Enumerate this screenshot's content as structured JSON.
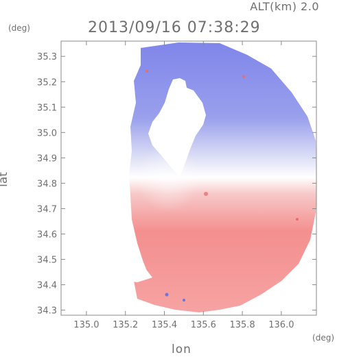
{
  "header": {
    "alt_label": "ALT(km) 2.0",
    "timestamp": "2013/09/16 07:38:29"
  },
  "axes": {
    "y_unit": "(deg)",
    "x_unit": "(deg)",
    "xlabel": "lon",
    "ylabel": "lat"
  },
  "chart_data": {
    "type": "heatmap",
    "title": "2013/09/16 07:38:29",
    "subtitle": "ALT(km) 2.0",
    "xlabel": "lon",
    "ylabel": "lat",
    "xunit": "(deg)",
    "yunit": "(deg)",
    "xlim": [
      134.87,
      136.18
    ],
    "ylim": [
      34.28,
      35.36
    ],
    "x_ticks": [
      135.0,
      135.2,
      135.4,
      135.6,
      135.8,
      136.0
    ],
    "x_tick_labels": [
      "135.0",
      "135.2",
      "135.4",
      "135.6",
      "135.8",
      "136.0"
    ],
    "y_ticks": [
      34.3,
      34.4,
      34.5,
      34.6,
      34.7,
      34.8,
      34.9,
      35.0,
      35.1,
      35.2,
      35.3
    ],
    "y_tick_labels": [
      "34.3",
      "34.4",
      "34.5",
      "34.6",
      "34.7",
      "34.8",
      "34.9",
      "35.0",
      "35.1",
      "35.2",
      "35.3"
    ],
    "radar_center": [
      135.52,
      34.82
    ],
    "colormap": {
      "approaching": "#7f86e8",
      "zero": "#ffffff",
      "receding": "#f48a8a"
    },
    "grid": false,
    "legend": "none"
  }
}
